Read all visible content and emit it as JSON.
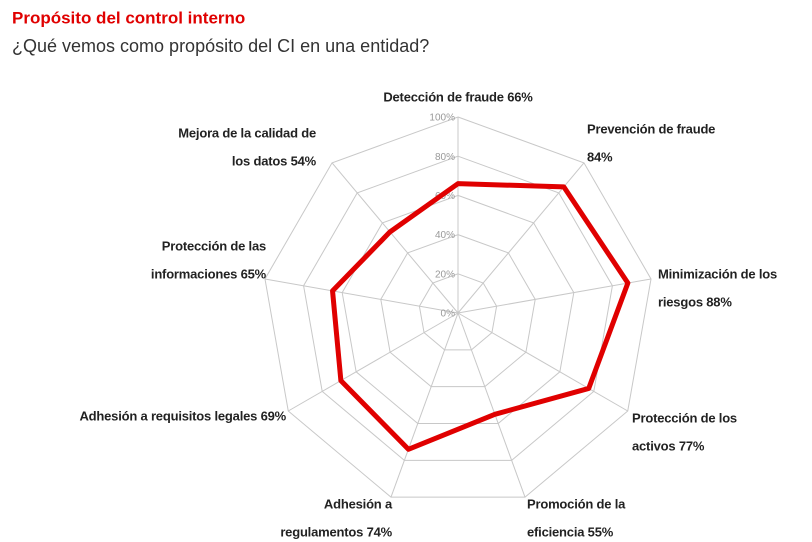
{
  "chart_data": {
    "type": "radar",
    "title": "Propósito del control interno",
    "subtitle": "¿Qué vemos como propósito del CI en una entidad?",
    "categories": [
      [
        "Detección de fraude 66%"
      ],
      [
        "Prevención de fraude",
        "84%"
      ],
      [
        "Minimización de los",
        "riesgos 88%"
      ],
      [
        "Protección de los",
        "activos 77%"
      ],
      [
        "Promoción de la",
        "eficiencia 55%"
      ],
      [
        "Adhesión a",
        "regulamentos 74%"
      ],
      [
        "Adhesión a requisitos legales 69%"
      ],
      [
        "Protección de las",
        "informaciones 65%"
      ],
      [
        "Mejora de la calidad de",
        "los datos 54%"
      ]
    ],
    "values": [
      66,
      84,
      88,
      77,
      55,
      74,
      69,
      65,
      54
    ],
    "color": "#e00000",
    "ylim": [
      0,
      100
    ],
    "yticks": [
      {
        "value": 0,
        "label": "0%"
      },
      {
        "value": 20,
        "label": "20%"
      },
      {
        "value": 40,
        "label": "40%"
      },
      {
        "value": 60,
        "label": "60%"
      },
      {
        "value": 80,
        "label": "80%"
      },
      {
        "value": 100,
        "label": "100%"
      }
    ],
    "grid": true
  }
}
